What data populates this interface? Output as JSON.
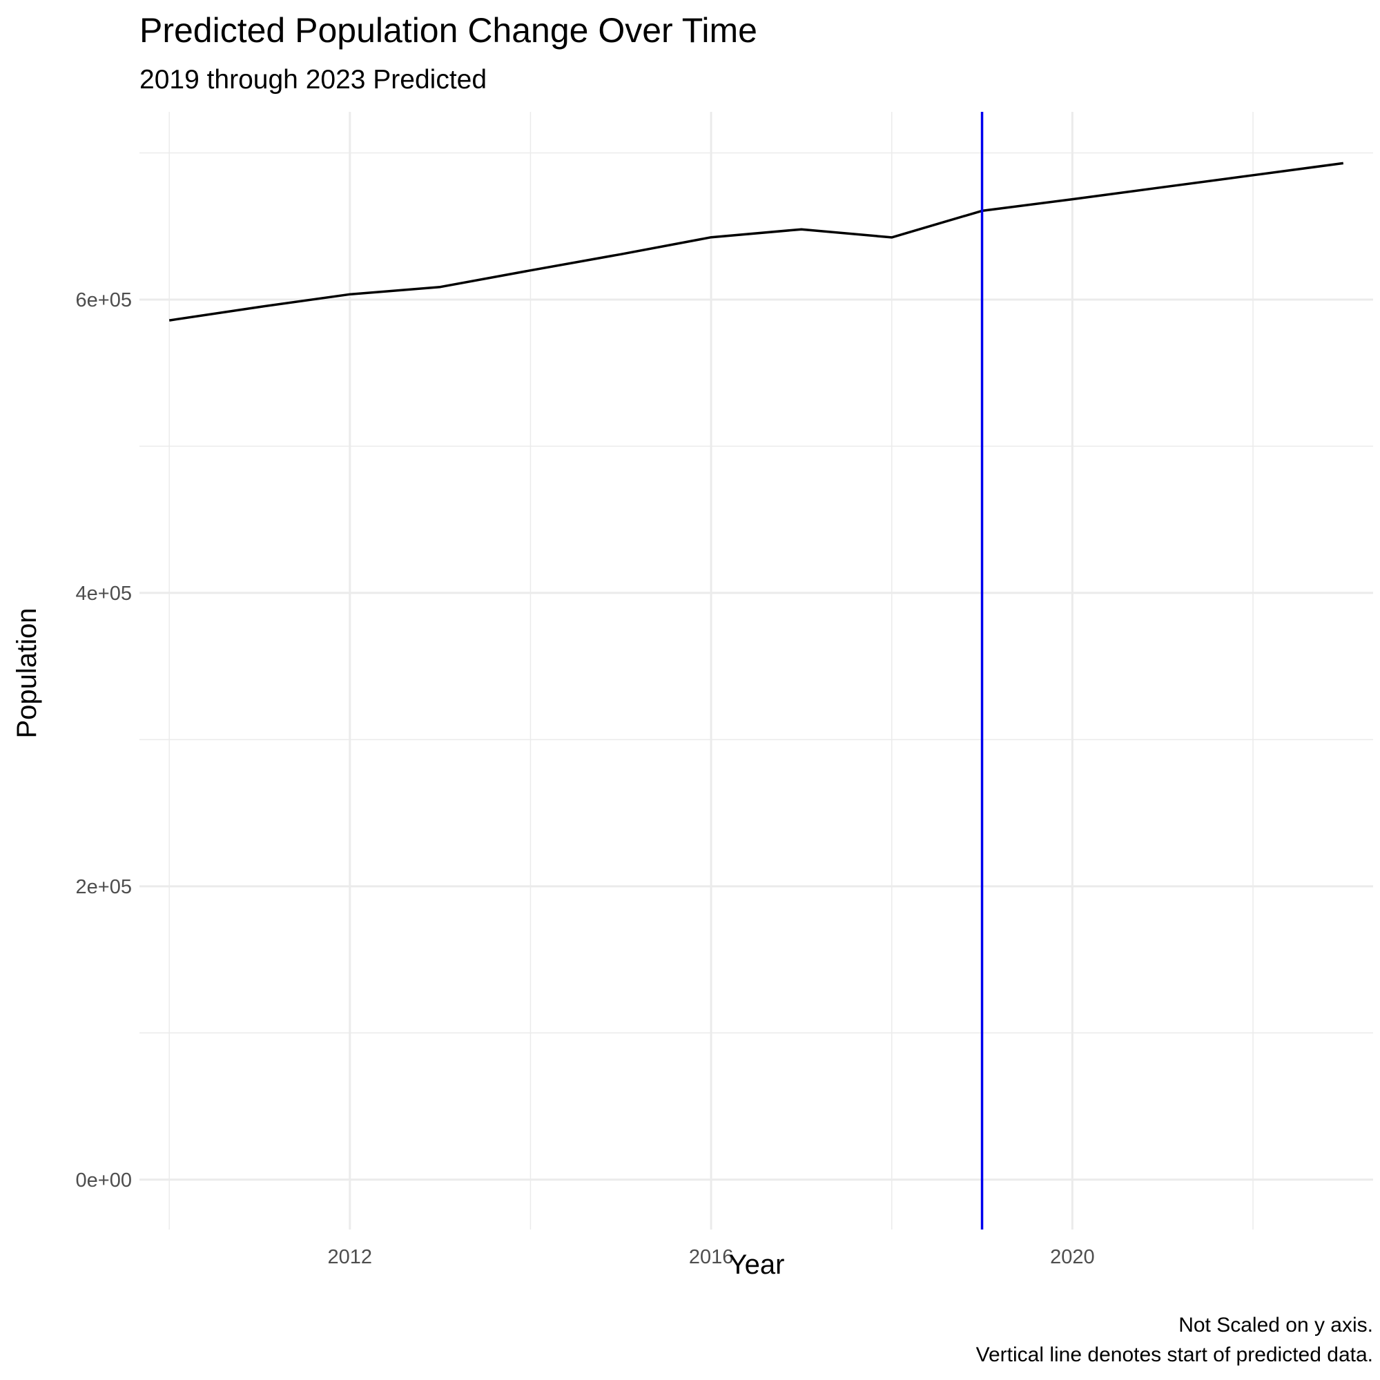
{
  "chart_data": {
    "type": "line",
    "title": "Predicted Population Change Over Time",
    "subtitle": "2019 through 2023 Predicted",
    "xlabel": "Year",
    "ylabel": "Population",
    "caption_lines": [
      "Not Scaled on y axis.",
      "Vertical line denotes start of predicted data."
    ],
    "x": [
      2010,
      2011,
      2012,
      2013,
      2014,
      2015,
      2016,
      2017,
      2018,
      2019,
      2020,
      2021,
      2022,
      2023
    ],
    "series": [
      {
        "values": [
          585800,
          595000,
          603600,
          608600,
          619900,
          630900,
          642500,
          647900,
          642400,
          660500,
          668400,
          676600,
          684800,
          693000
        ],
        "color": "#000000"
      }
    ],
    "reference_line": {
      "x": 2019,
      "color": "#0000ee"
    },
    "xlim": [
      2009.67,
      2023.33
    ],
    "ylim": [
      -34000,
      728000
    ],
    "x_ticks": [
      2012,
      2016,
      2020
    ],
    "x_tick_labels": [
      "2012",
      "2016",
      "2020"
    ],
    "x_minor_ticks": [
      2010,
      2014,
      2018,
      2022
    ],
    "y_ticks": [
      0,
      200000,
      400000,
      600000
    ],
    "y_tick_labels": [
      "0e+00",
      "2e+05",
      "4e+05",
      "6e+05"
    ],
    "y_minor_ticks": [
      100000,
      300000,
      500000,
      700000
    ],
    "grid": true,
    "legend": "none",
    "colors": {
      "background": "#ffffff",
      "grid": "#ebebeb",
      "tick_text": "#4d4d4d"
    }
  }
}
